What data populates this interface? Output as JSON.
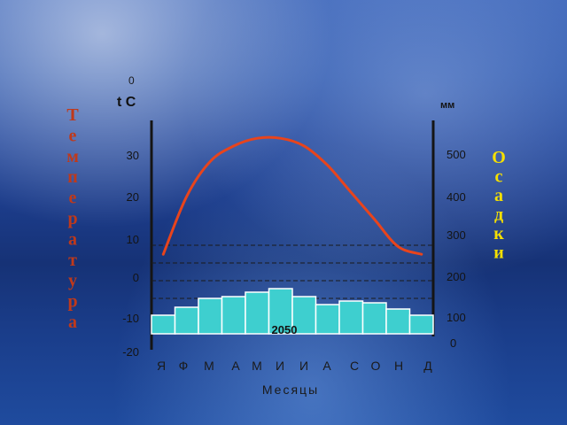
{
  "chart_data": {
    "type": "bar+line",
    "left_axis": {
      "degree_mark": "0",
      "unit_label": "t  C",
      "ticks": [
        "30",
        "20",
        "10",
        "0",
        "-10",
        "-20"
      ],
      "tick_values": [
        30,
        20,
        10,
        0,
        -10,
        -20
      ],
      "title_letters": [
        "Т",
        "е",
        "м",
        "п",
        "е",
        "р",
        "а",
        "т",
        "у",
        "р",
        "а"
      ],
      "title_color": "#c0391a"
    },
    "right_axis": {
      "unit_label": "мм",
      "ticks": [
        "500",
        "400",
        "300",
        "200",
        "100",
        "0"
      ],
      "tick_values": [
        500,
        400,
        300,
        200,
        100,
        0
      ],
      "title_letters": [
        "О",
        "с",
        "а",
        "д",
        "к",
        "и"
      ],
      "title_color": "#f5e000"
    },
    "categories": [
      "Я",
      "Ф",
      "М",
      "А",
      "М",
      "И",
      "И",
      "А",
      "С",
      "О",
      "Н",
      "Д"
    ],
    "x_label": "Месяцы",
    "precipitation_mm": [
      105,
      150,
      200,
      210,
      235,
      255,
      210,
      165,
      185,
      175,
      140,
      105
    ],
    "temperature_c": [
      5,
      20,
      29,
      33,
      35,
      35,
      33,
      28,
      21,
      14,
      7,
      5
    ],
    "annotation": "2050",
    "colors": {
      "bars": "#3ecfcf",
      "line": "#e8441c",
      "grid": "#1a1a1a"
    }
  }
}
